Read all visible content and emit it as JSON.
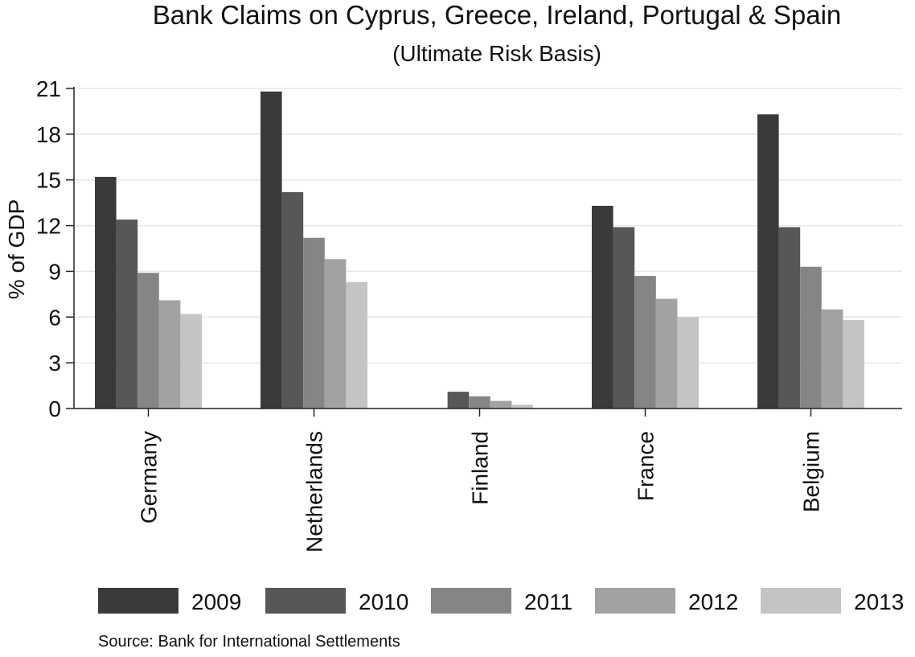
{
  "chart_data": {
    "type": "bar",
    "title": "Bank Claims on Cyprus, Greece, Ireland, Portugal & Spain",
    "subtitle": "(Ultimate Risk Basis)",
    "xlabel": "",
    "ylabel": "% of GDP",
    "ylim": [
      0,
      21
    ],
    "yticks": [
      "0",
      "3",
      "6",
      "9",
      "12",
      "15",
      "18",
      "21"
    ],
    "grid": true,
    "legend_position": "bottom",
    "categories": [
      "Germany",
      "Netherlands",
      "Finland",
      "France",
      "Belgium"
    ],
    "series": [
      {
        "name": "2009",
        "color": "#3a3a3a",
        "values": [
          15.2,
          20.8,
          0,
          13.3,
          19.3
        ]
      },
      {
        "name": "2010",
        "color": "#575757",
        "values": [
          12.4,
          14.2,
          1.1,
          11.9,
          11.9
        ]
      },
      {
        "name": "2011",
        "color": "#858585",
        "values": [
          8.9,
          11.2,
          0.8,
          8.7,
          9.3
        ]
      },
      {
        "name": "2012",
        "color": "#a2a2a2",
        "values": [
          7.1,
          9.8,
          0.5,
          7.2,
          6.5
        ]
      },
      {
        "name": "2013",
        "color": "#c4c4c4",
        "values": [
          6.2,
          8.3,
          0.25,
          6.0,
          5.8
        ]
      }
    ],
    "source": "Source: Bank for International Settlements"
  }
}
